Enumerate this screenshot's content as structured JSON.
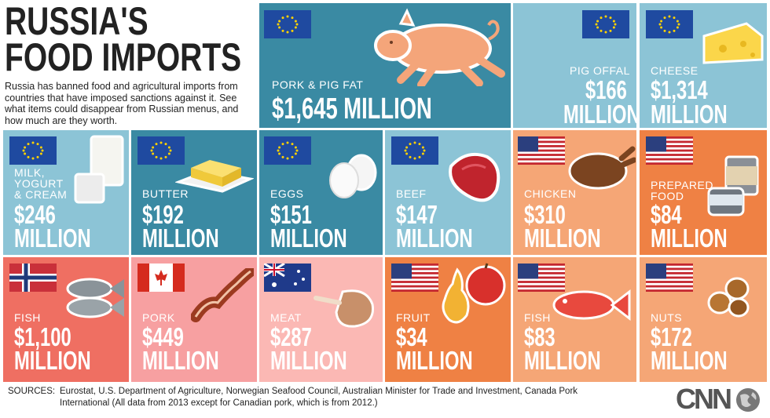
{
  "title_line1": "RUSSIA'S",
  "title_line2": "FOOD IMPORTS",
  "subtitle": "Russia has banned food and agricultural imports from countries that have imposed sanctions against it. See what items could disappear from Russian menus, and how much are they worth.",
  "tiles": {
    "pork_fat": {
      "label": "PORK & PIG FAT",
      "value": "$1,645 MILLION",
      "flag": "eu-flag"
    },
    "pig_offal": {
      "label": "PIG OFFAL",
      "value1": "$166",
      "value2": "MILLION",
      "flag": "eu-flag"
    },
    "cheese": {
      "label": "CHEESE",
      "value1": "$1,314",
      "value2": "MILLION",
      "flag": "eu-flag"
    },
    "milk": {
      "label1": "MILK,",
      "label2": "YOGURT",
      "label3": "& CREAM",
      "value1": "$246",
      "value2": "MILLION",
      "flag": "eu-flag"
    },
    "butter": {
      "label": "BUTTER",
      "value1": "$192",
      "value2": "MILLION",
      "flag": "eu-flag"
    },
    "eggs": {
      "label": "EGGS",
      "value1": "$151",
      "value2": "MILLION",
      "flag": "eu-flag"
    },
    "beef": {
      "label": "BEEF",
      "value1": "$147",
      "value2": "MILLION",
      "flag": "eu-flag"
    },
    "chicken": {
      "label": "CHICKEN",
      "value1": "$310",
      "value2": "MILLION",
      "flag": "us-flag"
    },
    "prepared": {
      "label1": "PREPARED",
      "label2": "FOOD",
      "value1": "$84",
      "value2": "MILLION",
      "flag": "us-flag"
    },
    "fish_no": {
      "label": "FISH",
      "value1": "$1,100",
      "value2": "MILLION",
      "flag": "norway-flag"
    },
    "pork_ca": {
      "label": "PORK",
      "value1": "$449",
      "value2": "MILLION",
      "flag": "canada-flag"
    },
    "meat_au": {
      "label": "MEAT",
      "value1": "$287",
      "value2": "MILLION",
      "flag": "australia-flag"
    },
    "fruit": {
      "label": "FRUIT",
      "value1": "$34",
      "value2": "MILLION",
      "flag": "us-flag"
    },
    "fish_us": {
      "label": "FISH",
      "value1": "$83",
      "value2": "MILLION",
      "flag": "us-flag"
    },
    "nuts": {
      "label": "NUTS",
      "value1": "$172",
      "value2": "MILLION",
      "flag": "us-flag"
    }
  },
  "sources_key": "SOURCES:",
  "sources_text": "Eurostat, U.S. Department of Agriculture, Norwegian Seafood Council, Australian Minister for Trade and Investment, Canada Pork International (All data from 2013 except for Canadian pork, which is from 2012.)",
  "logo": "CNN",
  "colors": {
    "teal_dark": "#3a8aa3",
    "teal_light": "#8cc4d6",
    "orange": "#f08f56",
    "orange_light": "#f5a676",
    "salmon": "#ef6f62",
    "pink": "#f7a0a1",
    "pink_light": "#fbb8b4"
  }
}
